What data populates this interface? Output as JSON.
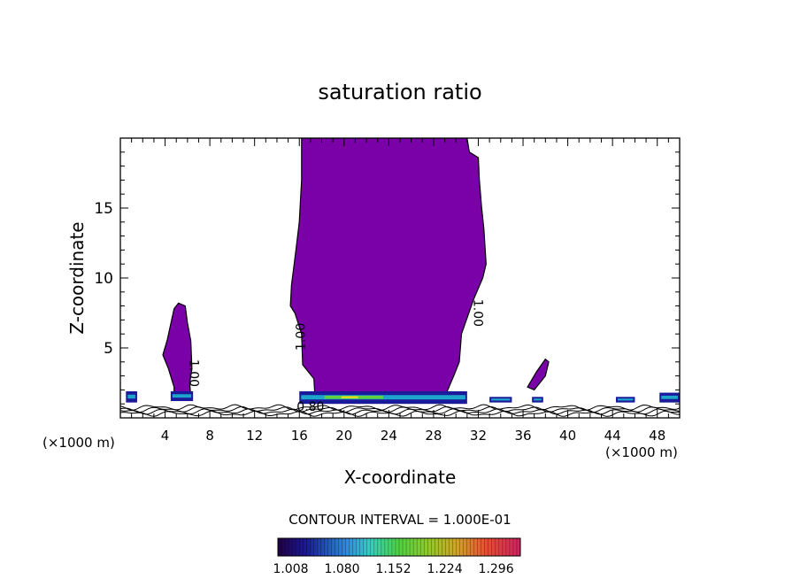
{
  "chart_data": {
    "type": "contour",
    "title": "saturation ratio",
    "xlabel": "X-coordinate",
    "ylabel": "Z-coordinate",
    "x_unit_label": "(×1000 m)",
    "xlim": [
      0,
      50
    ],
    "ylim": [
      0,
      20
    ],
    "x_ticks": [
      4,
      8,
      12,
      16,
      20,
      24,
      28,
      32,
      36,
      40,
      44,
      48
    ],
    "y_ticks": [
      5,
      10,
      15
    ],
    "contour_interval_text": "CONTOUR INTERVAL = 1.000E-01",
    "contour_labels": [
      "1.00",
      "1.00",
      "1.00",
      "0.80"
    ],
    "colorbar_ticks": [
      "1.008",
      "1.080",
      "1.152",
      "1.224",
      "1.296"
    ],
    "colorbar_range": [
      0.99,
      1.33
    ],
    "colors": {
      "fill": "#7a00a8",
      "band_low": "#1a1a9a",
      "band_cyan": "#1ec8d8",
      "band_green": "#60d040",
      "band_yellow": "#e8e020"
    },
    "regions": [
      {
        "name": "main-cloud",
        "value_gt": 1.0,
        "points": [
          [
            16.2,
            20
          ],
          [
            31.0,
            20
          ],
          [
            31.2,
            19
          ],
          [
            32.0,
            18.6
          ],
          [
            32.1,
            17
          ],
          [
            32.3,
            15
          ],
          [
            32.5,
            13.5
          ],
          [
            32.7,
            11
          ],
          [
            32.4,
            10
          ],
          [
            31.6,
            8.5
          ],
          [
            30.5,
            6
          ],
          [
            30.3,
            4
          ],
          [
            29.8,
            3
          ],
          [
            29.0,
            1.5
          ],
          [
            17.4,
            1.5
          ],
          [
            17.3,
            2.8
          ],
          [
            16.3,
            3.8
          ],
          [
            16.2,
            6
          ],
          [
            15.6,
            7.5
          ],
          [
            15.2,
            8
          ],
          [
            15.3,
            9.5
          ],
          [
            15.7,
            12
          ],
          [
            16.0,
            14
          ],
          [
            16.2,
            17
          ]
        ]
      },
      {
        "name": "left-cloud",
        "value_gt": 1.0,
        "points": [
          [
            3.8,
            4.5
          ],
          [
            4.2,
            5.6
          ],
          [
            4.8,
            7.8
          ],
          [
            5.2,
            8.2
          ],
          [
            5.8,
            8.0
          ],
          [
            6.0,
            6.8
          ],
          [
            6.3,
            5.5
          ],
          [
            6.4,
            3.5
          ],
          [
            6.2,
            2.5
          ],
          [
            6.3,
            1.5
          ],
          [
            4.8,
            1.5
          ],
          [
            4.8,
            2.2
          ],
          [
            4.3,
            3.5
          ]
        ]
      },
      {
        "name": "small-cloud-right",
        "value_gt": 1.0,
        "points": [
          [
            36.4,
            2.2
          ],
          [
            37.2,
            3.3
          ],
          [
            38.0,
            4.2
          ],
          [
            38.3,
            4.0
          ],
          [
            38.0,
            3.0
          ],
          [
            37.0,
            2.0
          ]
        ]
      }
    ],
    "low_bands": [
      {
        "x": [
          4.5,
          6.5
        ],
        "y": [
          1.2,
          1.9
        ]
      },
      {
        "x": [
          16.0,
          31.0
        ],
        "y": [
          1.0,
          1.9
        ]
      },
      {
        "x": [
          33.0,
          35.0
        ],
        "y": [
          1.1,
          1.5
        ]
      },
      {
        "x": [
          0.5,
          1.5
        ],
        "y": [
          1.1,
          1.9
        ]
      },
      {
        "x": [
          44.3,
          46.0
        ],
        "y": [
          1.1,
          1.5
        ]
      },
      {
        "x": [
          48.2,
          50.0
        ],
        "y": [
          1.1,
          1.8
        ]
      },
      {
        "x": [
          36.8,
          37.8
        ],
        "y": [
          1.1,
          1.5
        ]
      }
    ]
  }
}
